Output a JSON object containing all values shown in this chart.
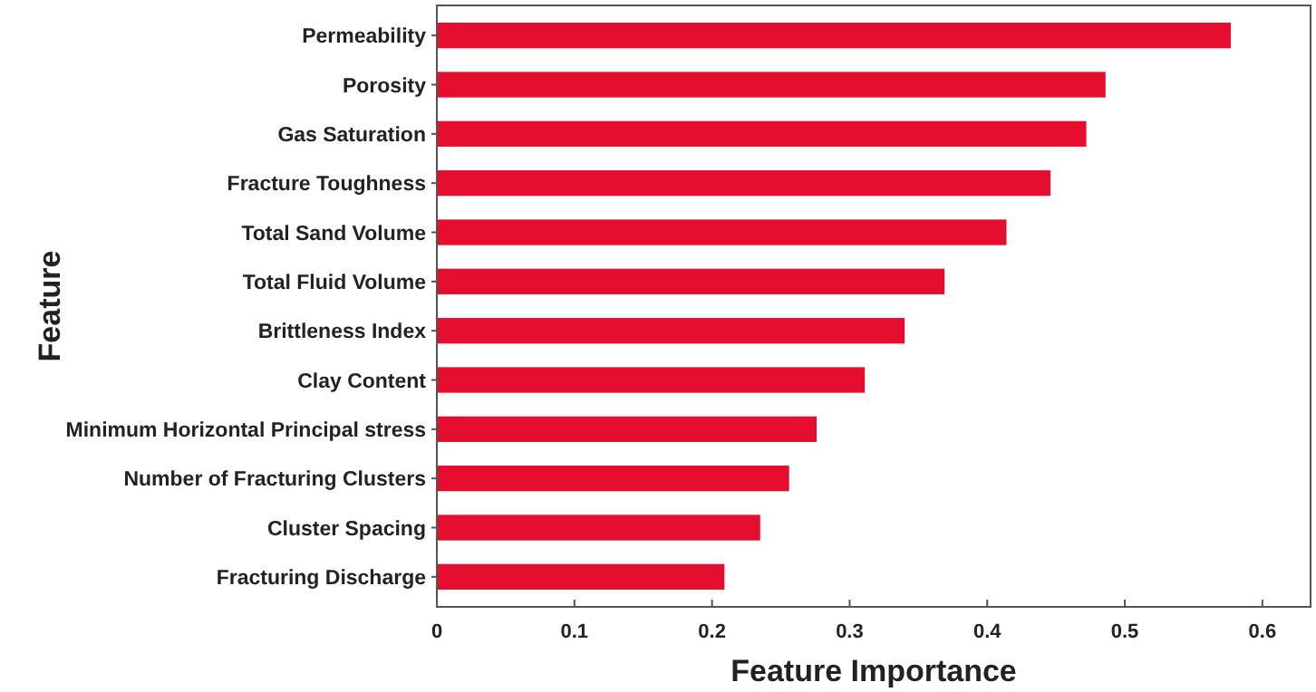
{
  "chart_data": {
    "type": "bar",
    "orientation": "horizontal",
    "xlabel": "Feature Importance",
    "ylabel": "Feature",
    "categories": [
      "Permeability",
      "Porosity",
      "Gas Saturation",
      "Fracture Toughness",
      "Total Sand Volume",
      "Total Fluid Volume",
      "Brittleness Index",
      "Clay Content",
      "Minimum Horizontal Principal stress",
      "Number of Fracturing Clusters",
      "Cluster Spacing",
      "Fracturing Discharge"
    ],
    "values": [
      0.577,
      0.486,
      0.472,
      0.446,
      0.414,
      0.369,
      0.34,
      0.311,
      0.276,
      0.256,
      0.235,
      0.209
    ],
    "color": "#e60e2e",
    "xlim": [
      0,
      0.635
    ],
    "xticks": [
      0,
      0.1,
      0.2,
      0.3,
      0.4,
      0.5,
      0.6
    ]
  }
}
